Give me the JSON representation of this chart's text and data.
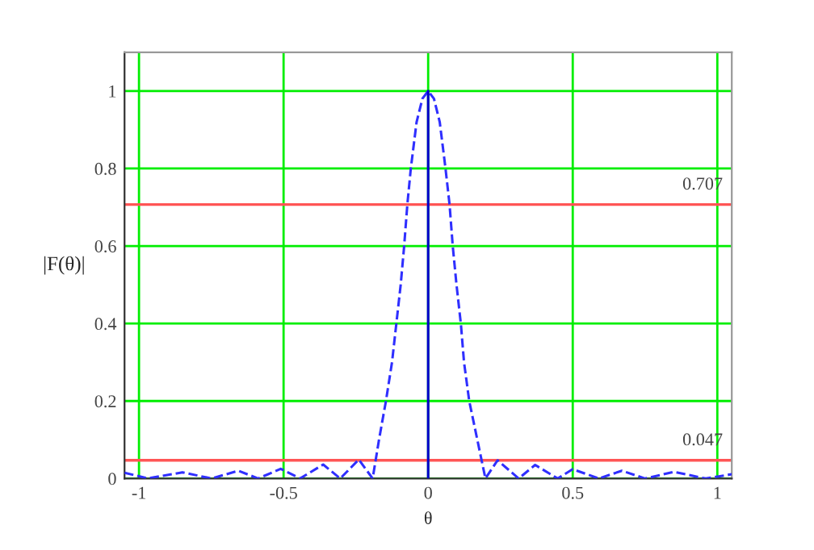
{
  "chart_data": {
    "type": "line",
    "xlabel": "θ",
    "ylabel": "|F(θ)|",
    "xlim": [
      -1.05,
      1.05
    ],
    "ylim": [
      0,
      1.1
    ],
    "xticks": [
      -1,
      -0.5,
      0,
      0.5,
      1
    ],
    "yticks": [
      0,
      0.2,
      0.4,
      0.6,
      0.8,
      1
    ],
    "grid": true,
    "legend": false,
    "series": [
      {
        "color": "#2f2fff",
        "line_style": "dashed",
        "x": [
          -1.05,
          -0.97,
          -0.85,
          -0.749,
          -0.656,
          -0.588,
          -0.51,
          -0.443,
          -0.363,
          -0.304,
          -0.24,
          -0.192,
          -0.17,
          -0.146,
          -0.125,
          -0.11,
          -0.095,
          -0.083,
          -0.072,
          -0.06,
          -0.04,
          -0.02,
          0,
          0.02,
          0.04,
          0.06,
          0.074,
          0.085,
          0.098,
          0.113,
          0.124,
          0.142,
          0.17,
          0.198,
          0.24,
          0.313,
          0.37,
          0.448,
          0.5,
          0.59,
          0.67,
          0.75,
          0.85,
          0.96,
          1.05
        ],
        "values": [
          0.015,
          0,
          0.016,
          0,
          0.02,
          0,
          0.025,
          0,
          0.036,
          0,
          0.049,
          0,
          0.1,
          0.2,
          0.3,
          0.4,
          0.5,
          0.6,
          0.707,
          0.8,
          0.92,
          0.98,
          1,
          0.98,
          0.92,
          0.8,
          0.707,
          0.6,
          0.5,
          0.4,
          0.3,
          0.2,
          0.1,
          0,
          0.047,
          0,
          0.035,
          0,
          0.024,
          0,
          0.02,
          0,
          0.017,
          0,
          0.011
        ]
      },
      {
        "color": "#0000cc",
        "line_style": "solid",
        "x": [
          0,
          0
        ],
        "values": [
          0,
          1
        ]
      }
    ],
    "ref_lines": [
      {
        "axis": "y",
        "value": 0.707,
        "label": "0.707",
        "color": "#ff5555"
      },
      {
        "axis": "y",
        "value": 0.047,
        "label": "0.047",
        "color": "#ff5555"
      }
    ]
  }
}
